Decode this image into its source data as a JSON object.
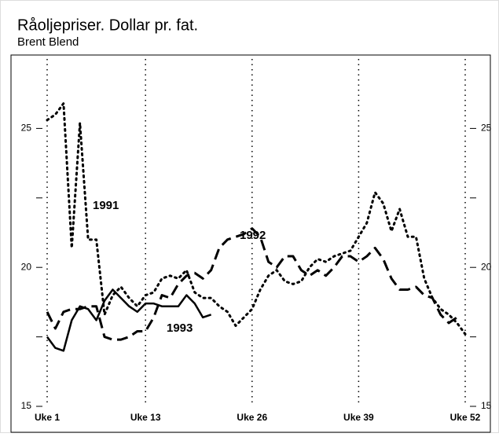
{
  "chart_data": {
    "type": "line",
    "title": "Råoljepriser. Dollar pr. fat.",
    "subtitle": "Brent Blend",
    "x": [
      1,
      2,
      3,
      4,
      5,
      6,
      7,
      8,
      9,
      10,
      11,
      12,
      13,
      14,
      15,
      16,
      17,
      18,
      19,
      20,
      21,
      22,
      23,
      24,
      25,
      26,
      27,
      28,
      29,
      30,
      31,
      32,
      33,
      34,
      35,
      36,
      37,
      38,
      39,
      40,
      41,
      42,
      43,
      44,
      45,
      46,
      47,
      48,
      49,
      50,
      51,
      52
    ],
    "xlim": [
      1,
      52
    ],
    "xticks": [
      {
        "value": 1,
        "label": "Uke 1"
      },
      {
        "value": 13,
        "label": "Uke 13"
      },
      {
        "value": 26,
        "label": "Uke 26"
      },
      {
        "value": 39,
        "label": "Uke 39"
      },
      {
        "value": 52,
        "label": "Uke 52"
      }
    ],
    "ylim": [
      15,
      27.5
    ],
    "yticks": [
      15,
      20,
      25
    ],
    "minor_yticks": [
      17.5,
      22.5
    ],
    "series": [
      {
        "name": "1991",
        "color": "#000000",
        "style": "dotted",
        "values": [
          25.3,
          25.5,
          25.9,
          20.7,
          25.2,
          21.0,
          21.0,
          18.3,
          19.0,
          19.3,
          18.9,
          18.6,
          19.0,
          19.1,
          19.6,
          19.7,
          19.6,
          19.9,
          19.1,
          18.9,
          18.9,
          18.6,
          18.4,
          17.9,
          18.2,
          18.5,
          19.2,
          19.7,
          19.9,
          19.5,
          19.4,
          19.5,
          20.0,
          20.3,
          20.2,
          20.4,
          20.5,
          20.6,
          21.1,
          21.6,
          22.7,
          22.3,
          21.3,
          22.1,
          21.1,
          21.1,
          19.6,
          18.9,
          18.5,
          18.3,
          18.0,
          17.6
        ]
      },
      {
        "name": "1992",
        "color": "#000000",
        "style": "dashed",
        "values": [
          18.4,
          17.8,
          18.4,
          18.5,
          18.5,
          18.6,
          18.6,
          17.5,
          17.4,
          17.4,
          17.5,
          17.7,
          17.7,
          18.2,
          19.0,
          18.9,
          19.4,
          19.7,
          19.8,
          19.6,
          19.9,
          20.7,
          21.0,
          21.1,
          21.2,
          21.4,
          21.1,
          20.2,
          20.0,
          20.4,
          20.4,
          19.9,
          19.7,
          19.9,
          19.7,
          20.0,
          20.4,
          20.4,
          20.2,
          20.4,
          20.7,
          20.3,
          19.6,
          19.2,
          19.2,
          19.3,
          19.0,
          18.9,
          18.3,
          18.0,
          18.2,
          null
        ]
      },
      {
        "name": "1993",
        "color": "#000000",
        "style": "solid",
        "values": [
          17.5,
          17.1,
          17.0,
          18.1,
          18.6,
          18.5,
          18.1,
          18.8,
          19.2,
          18.9,
          18.6,
          18.4,
          18.7,
          18.7,
          18.6,
          18.6,
          18.6,
          19.0,
          18.7,
          18.2,
          18.3,
          null,
          null,
          null,
          null,
          null,
          null,
          null,
          null,
          null,
          null,
          null,
          null,
          null,
          null,
          null,
          null,
          null,
          null,
          null,
          null,
          null,
          null,
          null,
          null,
          null,
          null,
          null,
          null,
          null,
          null,
          null
        ]
      }
    ]
  }
}
